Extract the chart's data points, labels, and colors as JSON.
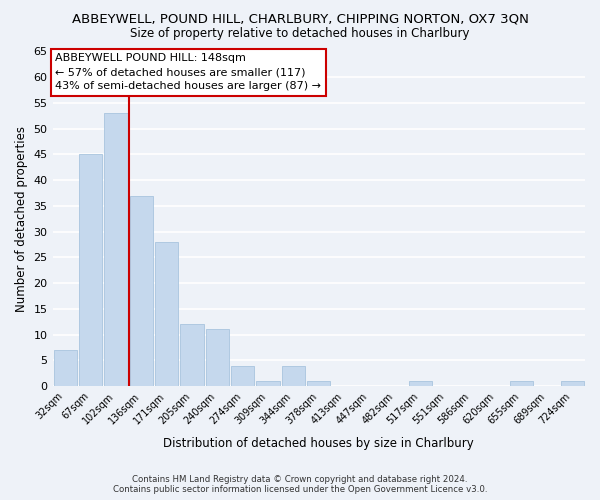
{
  "title": "ABBEYWELL, POUND HILL, CHARLBURY, CHIPPING NORTON, OX7 3QN",
  "subtitle": "Size of property relative to detached houses in Charlbury",
  "xlabel": "Distribution of detached houses by size in Charlbury",
  "ylabel": "Number of detached properties",
  "bar_color": "#c5d8ed",
  "bar_edge_color": "#a8c4de",
  "bin_labels": [
    "32sqm",
    "67sqm",
    "102sqm",
    "136sqm",
    "171sqm",
    "205sqm",
    "240sqm",
    "274sqm",
    "309sqm",
    "344sqm",
    "378sqm",
    "413sqm",
    "447sqm",
    "482sqm",
    "517sqm",
    "551sqm",
    "586sqm",
    "620sqm",
    "655sqm",
    "689sqm",
    "724sqm"
  ],
  "bar_heights": [
    7,
    45,
    53,
    37,
    28,
    12,
    11,
    4,
    1,
    4,
    1,
    0,
    0,
    0,
    1,
    0,
    0,
    0,
    1,
    0,
    1
  ],
  "ylim": [
    0,
    65
  ],
  "yticks": [
    0,
    5,
    10,
    15,
    20,
    25,
    30,
    35,
    40,
    45,
    50,
    55,
    60,
    65
  ],
  "vline_x_index": 2,
  "vline_color": "#cc0000",
  "annotation_title": "ABBEYWELL POUND HILL: 148sqm",
  "annotation_line2": "← 57% of detached houses are smaller (117)",
  "annotation_line3": "43% of semi-detached houses are larger (87) →",
  "annotation_box_color": "#ffffff",
  "annotation_box_edge": "#cc0000",
  "background_color": "#eef2f8",
  "grid_color": "#ffffff",
  "footer_line1": "Contains HM Land Registry data © Crown copyright and database right 2024.",
  "footer_line2": "Contains public sector information licensed under the Open Government Licence v3.0."
}
